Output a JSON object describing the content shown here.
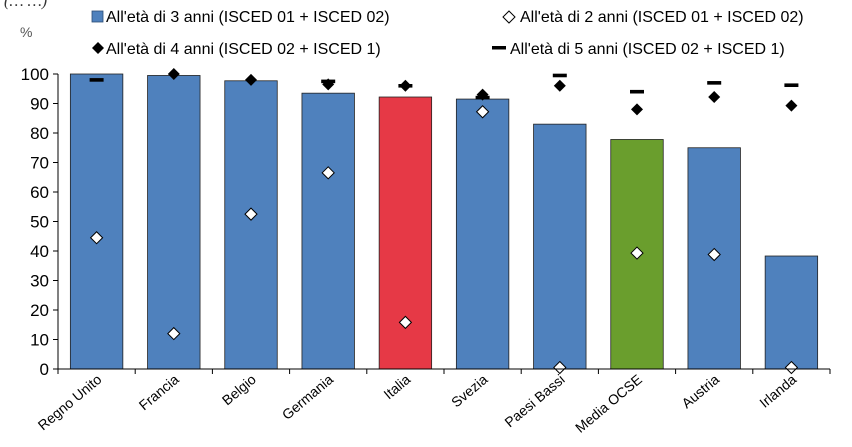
{
  "chart_data": {
    "type": "bar",
    "title": "",
    "cut_text": "(…  …)",
    "ylabel": "%",
    "ylim": [
      0,
      100
    ],
    "ytick_step": 10,
    "grid": false,
    "legend_position": "top",
    "categories": [
      "Regno Unito",
      "Francia",
      "Belgio",
      "Germania",
      "Italia",
      "Svezia",
      "Paesi Bassi",
      "Media OCSE",
      "Austria",
      "Irlanda"
    ],
    "bar_series": {
      "name": "All'età di 3 anni  (ISCED 01 + ISCED 02)",
      "values": [
        100,
        99.5,
        97.7,
        93.5,
        92.2,
        91.5,
        83,
        77.8,
        75,
        38.3
      ],
      "color": "#4f81bd",
      "highlight_colors": {
        "Italia": "#e63946",
        "Media OCSE": "#6a9e2d"
      }
    },
    "marker_series": [
      {
        "name": "All'età di 2 anni  (ISCED 01 + ISCED 02)",
        "marker": "open-diamond",
        "values": [
          44.5,
          12,
          52.5,
          66.5,
          15.8,
          87.2,
          0.5,
          39.3,
          38.8,
          0.5
        ]
      },
      {
        "name": "All'età di 4 anni (ISCED 02 + ISCED 1)",
        "marker": "filled-diamond",
        "values": [
          null,
          100,
          98,
          96.5,
          96,
          93,
          96,
          88,
          92.2,
          89.3
        ]
      },
      {
        "name": "All'età di 5 anni (ISCED 02 + ISCED 1)",
        "marker": "dash",
        "values": [
          98,
          null,
          null,
          97.5,
          96,
          92,
          99.5,
          94,
          97,
          96.2
        ]
      }
    ]
  }
}
